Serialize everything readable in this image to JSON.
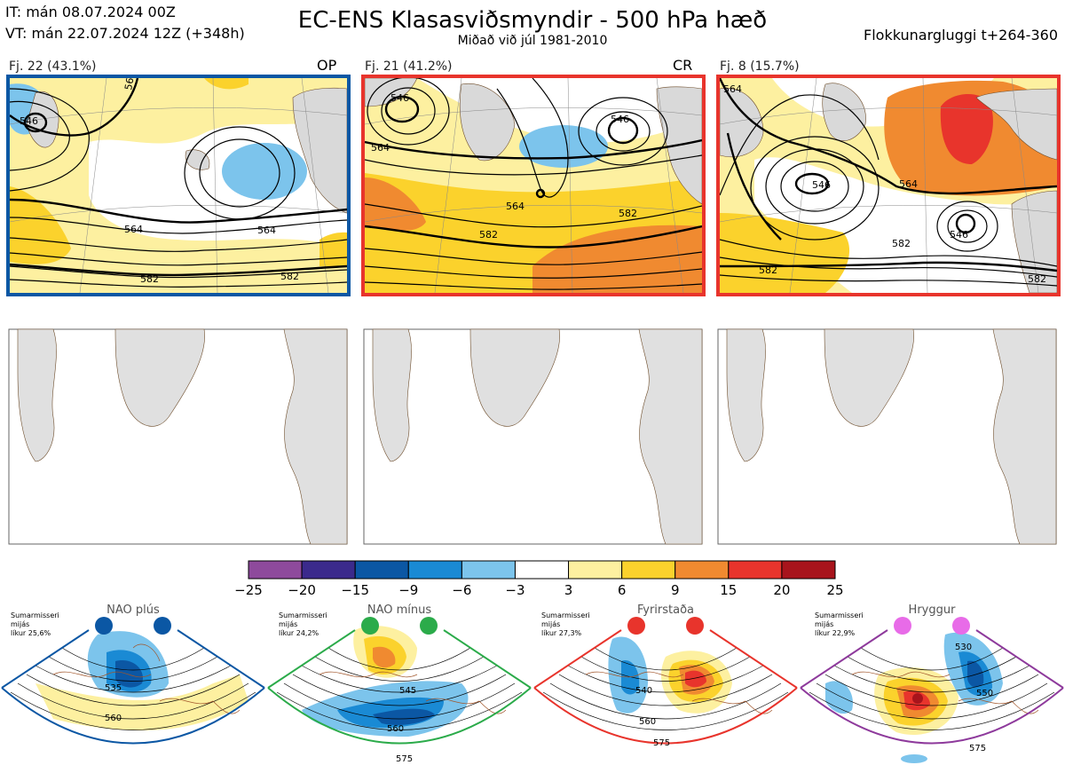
{
  "header": {
    "it": "IT: mán 08.07.2024 00Z",
    "vt": "VT: mán 22.07.2024 12Z  (+348h)",
    "title": "EC-ENS Klasasviðsmyndir - 500 hPa hæð",
    "subtitle": "Miðað við júl 1981-2010",
    "window": "Flokkunargluggi t+264-360"
  },
  "panels": [
    {
      "label": "Fj. 22 (43.1%)",
      "tag": "OP",
      "frame_color": "#0b57a4",
      "contours": [
        "564",
        "582",
        "546",
        "564",
        "582",
        "564"
      ]
    },
    {
      "label": "Fj. 21 (41.2%)",
      "tag": "CR",
      "frame_color": "#e8342c",
      "contours": [
        "546",
        "546",
        "564",
        "564",
        "582",
        "582"
      ]
    },
    {
      "label": "Fj. 8 (15.7%)",
      "tag": "",
      "frame_color": "#e8342c",
      "contours": [
        "564",
        "546",
        "564",
        "546",
        "582",
        "582",
        "582"
      ]
    }
  ],
  "colorbar": {
    "ticks": [
      "−25",
      "−20",
      "−15",
      "−9",
      "−6",
      "−3",
      "3",
      "6",
      "9",
      "15",
      "20",
      "25"
    ],
    "colors": [
      "#8e4a9c",
      "#3b2a8c",
      "#0b57a4",
      "#1a8ad4",
      "#7cc4ec",
      "#ffffff",
      "#fdf0a0",
      "#fbd22c",
      "#f08a30",
      "#e8342c",
      "#a8141c"
    ]
  },
  "regimes": [
    {
      "name": "NAO plús",
      "note1": "Sumarmisseri",
      "note2": "mijás",
      "note3": "líkur 25,6%",
      "color": "#0b57a4",
      "labels": [
        "535",
        "560"
      ]
    },
    {
      "name": "NAO mínus",
      "note1": "Sumarmisseri",
      "note2": "mijás",
      "note3": "líkur 24,2%",
      "color": "#2bab4a",
      "labels": [
        "545",
        "560",
        "575"
      ]
    },
    {
      "name": "Fyrirstaða",
      "note1": "Sumarmisseri",
      "note2": "mijás",
      "note3": "líkur 27,3%",
      "color": "#e8342c",
      "labels": [
        "540",
        "560",
        "575"
      ]
    },
    {
      "name": "Hryggur",
      "note1": "Sumarmisseri",
      "note2": "mijás",
      "note3": "líkur 22,9%",
      "color": "#8e3a9c",
      "labels": [
        "530",
        "550",
        "575"
      ]
    }
  ],
  "chart_data": {
    "type": "heatmap",
    "colorbar_ticks": [
      -25,
      -20,
      -15,
      -9,
      -6,
      -3,
      3,
      6,
      9,
      15,
      20,
      25
    ]
  }
}
